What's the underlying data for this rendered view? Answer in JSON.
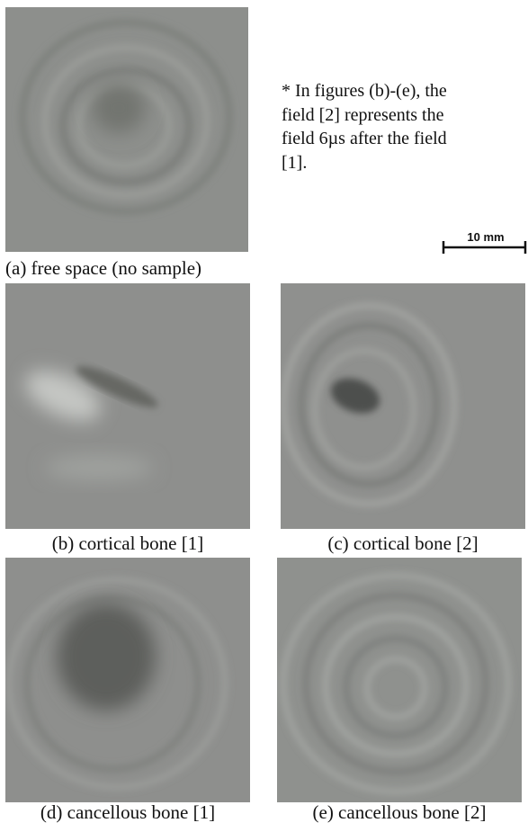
{
  "note": {
    "lines": [
      "* In figures (b)-(e), the",
      "field [2] represents the",
      "field 6µs after the field",
      "[1]."
    ]
  },
  "scale_bar": "10 mm",
  "panels": [
    {
      "caption": "(a) free space (no sample)"
    },
    {
      "caption": "(b) cortical bone [1]"
    },
    {
      "caption": "(c) cortical bone [2]"
    },
    {
      "caption": "(d) cancellous bone [1]"
    },
    {
      "caption": "(e) cancellous bone [2]"
    }
  ]
}
